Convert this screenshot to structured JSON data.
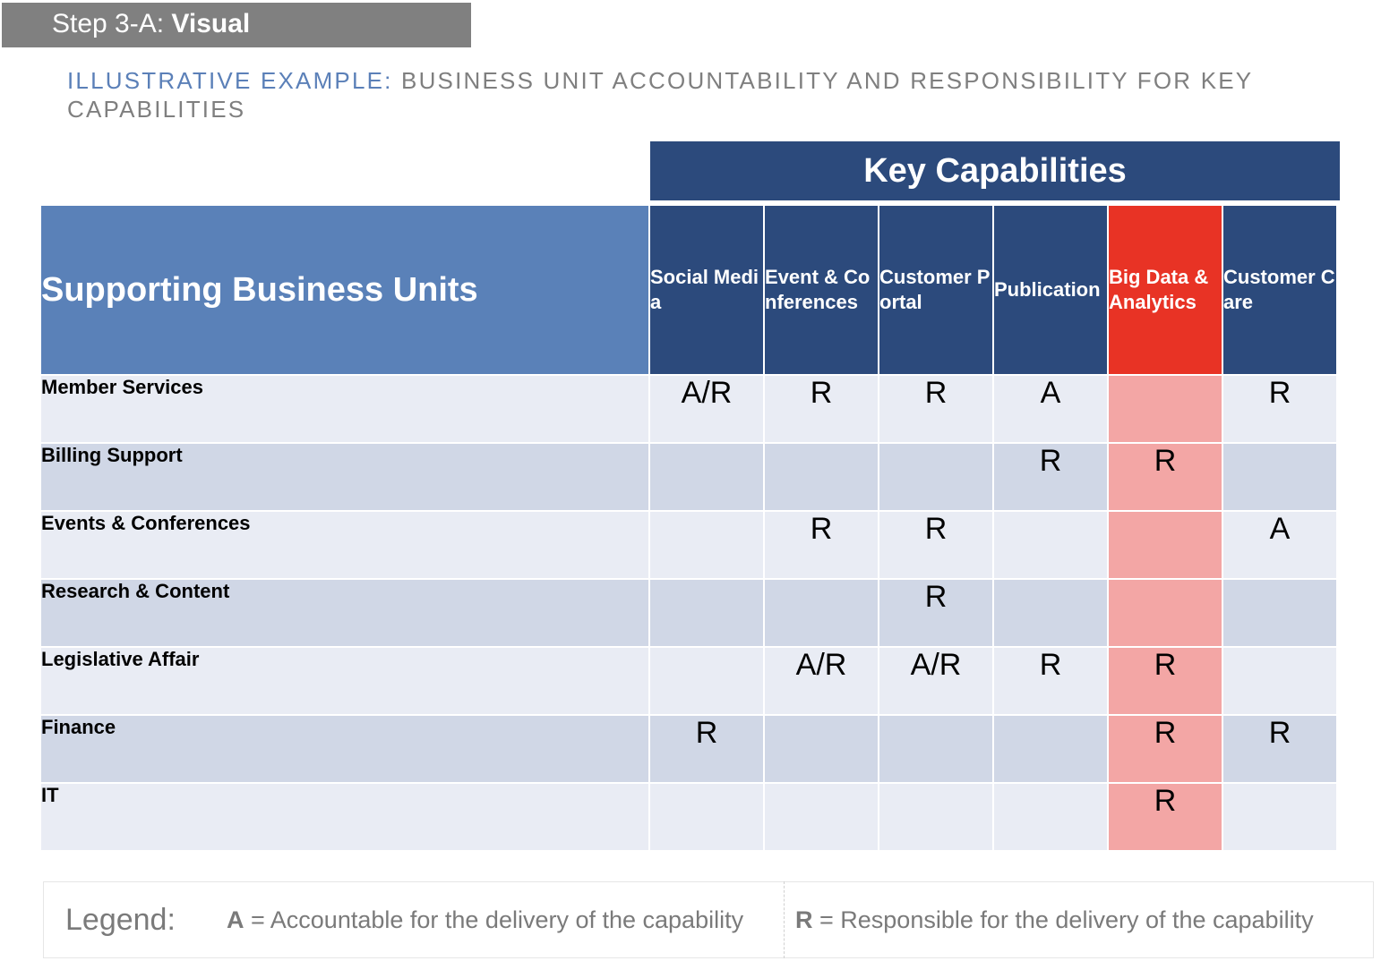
{
  "header": {
    "step_prefix": "Step 3-A: ",
    "step_title": "Visual"
  },
  "subtitle": {
    "highlight": "ILLUSTRATIVE EXAMPLE:",
    "text": " BUSINESS UNIT ACCOUNTABILITY AND RESPONSIBILITY FOR KEY CAPABILITIES"
  },
  "matrix": {
    "group_header": "Key Capabilities",
    "row_header": "Supporting Business Units",
    "columns": [
      {
        "label": "Social Media",
        "highlight": false
      },
      {
        "label": "Event & Conferences",
        "highlight": false
      },
      {
        "label": "Customer Portal",
        "highlight": false
      },
      {
        "label": "Publication",
        "highlight": false
      },
      {
        "label": "Big Data & Analytics",
        "highlight": true
      },
      {
        "label": "Customer Care",
        "highlight": false
      }
    ],
    "rows": [
      {
        "unit": "Member Services",
        "values": [
          "A/R",
          "R",
          "R",
          "A",
          "",
          "R"
        ]
      },
      {
        "unit": "Billing Support",
        "values": [
          "",
          "",
          "",
          "R",
          "R",
          ""
        ]
      },
      {
        "unit": "Events & Conferences",
        "values": [
          "",
          "R",
          "R",
          "",
          "",
          "A"
        ]
      },
      {
        "unit": "Research & Content",
        "values": [
          "",
          "",
          "R",
          "",
          "",
          ""
        ]
      },
      {
        "unit": "Legislative Affair",
        "values": [
          "",
          "A/R",
          "A/R",
          "R",
          "R",
          ""
        ]
      },
      {
        "unit": "Finance",
        "values": [
          "R",
          "",
          "",
          "",
          "R",
          "R"
        ]
      },
      {
        "unit": "IT",
        "values": [
          "",
          "",
          "",
          "",
          "R",
          ""
        ]
      }
    ]
  },
  "legend": {
    "label": "Legend:",
    "a_key": "A",
    "a_text": " = Accountable for the delivery of the capability",
    "r_key": "R",
    "r_text": " = Responsible for the delivery of the capability"
  },
  "colors": {
    "step_bar": "#808080",
    "dark_blue": "#2c4a7c",
    "mid_blue": "#5a81b8",
    "highlight_red": "#e83325",
    "highlight_pink": "#f3a6a5",
    "row_light": "#e9ecf4",
    "row_dark": "#d0d7e6"
  }
}
